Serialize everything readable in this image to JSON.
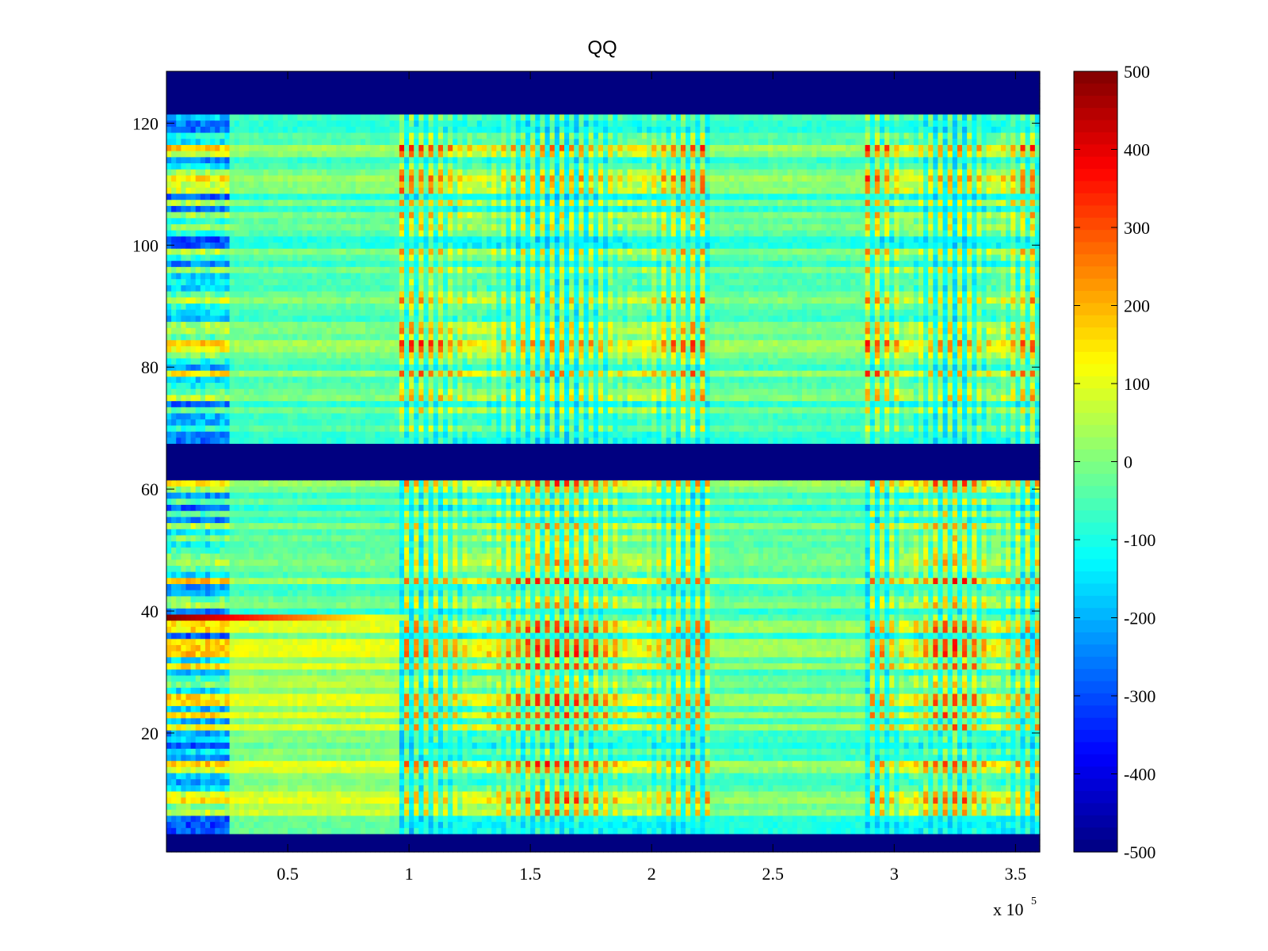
{
  "chart_data": {
    "type": "heatmap",
    "title": "QQ",
    "xlabel": "",
    "ylabel": "",
    "x_multiplier_label": "x 10",
    "x_multiplier_exponent": "5",
    "xlim": [
      0,
      360000
    ],
    "ylim": [
      0.5,
      128.5
    ],
    "xticks": [
      50000,
      100000,
      150000,
      200000,
      250000,
      300000,
      350000
    ],
    "xtick_labels": [
      "0.5",
      "1",
      "1.5",
      "2",
      "2.5",
      "3",
      "3.5"
    ],
    "yticks": [
      20,
      40,
      60,
      80,
      100,
      120
    ],
    "ytick_labels": [
      "20",
      "40",
      "60",
      "80",
      "100",
      "120"
    ],
    "colormap": "jet",
    "clim": [
      -500,
      500
    ],
    "colorbar_ticks": [
      500,
      400,
      300,
      200,
      100,
      0,
      -100,
      -200,
      -300,
      -400,
      -500
    ],
    "colorbar_tick_labels": [
      "500",
      "400",
      "300",
      "200",
      "100",
      "0",
      "-100",
      "-200",
      "-300",
      "-400",
      "-500"
    ],
    "masked_row_ranges": [
      [
        1,
        3
      ],
      [
        62,
        67
      ],
      [
        122,
        128
      ]
    ],
    "masked_value": -500,
    "active_segments": [
      {
        "x_start": 0,
        "x_end": 27000,
        "style": "striped-mixed"
      },
      {
        "x_start": 27000,
        "x_end": 97000,
        "style": "quiet"
      },
      {
        "x_start": 97000,
        "x_end": 225000,
        "style": "oscillating"
      },
      {
        "x_start": 225000,
        "x_end": 288000,
        "style": "quiet"
      },
      {
        "x_start": 288000,
        "x_end": 360000,
        "style": "oscillating"
      }
    ],
    "highlight_row": {
      "row": 39,
      "value_start": 500,
      "value_end": 50,
      "x_start": 0,
      "x_end": 100000
    }
  }
}
